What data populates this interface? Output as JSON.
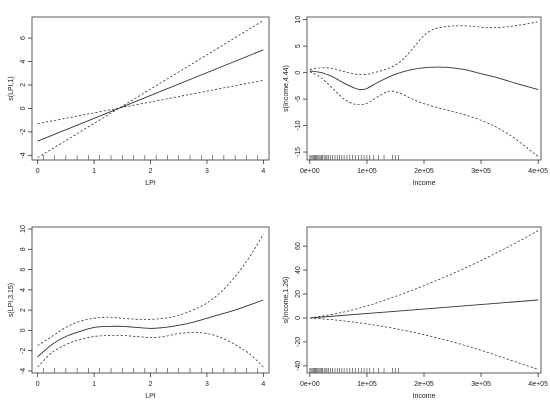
{
  "chart_data": [
    {
      "type": "line",
      "xlabel": "LPI",
      "ylabel": "s(LPI,1)",
      "xlim": [
        -0.1,
        4.1
      ],
      "ylim": [
        -4.4,
        7.8
      ],
      "x_ticks": [
        0,
        1,
        2,
        3,
        4
      ],
      "y_ticks": [
        -4,
        -2,
        0,
        2,
        4,
        6
      ],
      "rug": [
        0.1,
        0.3,
        0.5,
        0.7,
        0.9,
        1.1,
        1.3,
        1.5,
        1.7,
        1.9,
        2.1,
        2.3,
        2.5,
        2.7,
        2.9,
        3.1,
        3.3,
        3.5,
        3.7,
        3.9
      ],
      "series": [
        {
          "role": "fit",
          "style": "solid",
          "x": [
            0,
            4
          ],
          "y": [
            -2.8,
            5.0
          ]
        },
        {
          "role": "upper",
          "style": "dashed",
          "x": [
            0,
            4
          ],
          "y": [
            -1.3,
            2.4
          ]
        },
        {
          "role": "lower",
          "style": "dashed",
          "x": [
            0,
            4
          ],
          "y": [
            -4.2,
            7.5
          ]
        }
      ]
    },
    {
      "type": "line",
      "xlabel": "Income",
      "ylabel": "s(Income,4.44)",
      "xlim": [
        -5000,
        405000
      ],
      "ylim": [
        -16.5,
        10.5
      ],
      "x_ticks": [
        0,
        100000,
        200000,
        300000,
        400000
      ],
      "x_tick_labels": [
        "0e+00",
        "1e+05",
        "2e+05",
        "3e+05",
        "4e+05"
      ],
      "y_ticks": [
        -15,
        -10,
        -5,
        0,
        5,
        10
      ],
      "rug": [
        0,
        2000,
        4000,
        6000,
        8000,
        10000,
        12000,
        14000,
        16000,
        18000,
        20000,
        22000,
        25000,
        28000,
        30000,
        33000,
        36000,
        40000,
        44000,
        48000,
        52000,
        56000,
        60000,
        65000,
        70000,
        75000,
        80000,
        85000,
        90000,
        95000,
        100000,
        105000,
        112000,
        120000,
        130000,
        145000,
        150000,
        155000
      ],
      "series": [
        {
          "role": "fit",
          "style": "solid",
          "x": [
            0,
            20000,
            40000,
            60000,
            80000,
            90000,
            100000,
            120000,
            150000,
            180000,
            210000,
            240000,
            270000,
            300000,
            330000,
            360000,
            400000
          ],
          "y": [
            0.3,
            0.0,
            -0.8,
            -2.0,
            -3.0,
            -3.2,
            -3.0,
            -1.8,
            -0.3,
            0.6,
            1.0,
            1.0,
            0.6,
            -0.2,
            -1.0,
            -2.0,
            -3.2
          ]
        },
        {
          "role": "upper",
          "style": "dashed",
          "x": [
            0,
            20000,
            40000,
            60000,
            80000,
            100000,
            120000,
            140000,
            160000,
            180000,
            200000,
            220000,
            250000,
            280000,
            310000,
            340000,
            370000,
            400000
          ],
          "y": [
            0.6,
            0.9,
            0.8,
            0.2,
            -0.3,
            -0.3,
            0.2,
            0.9,
            2.2,
            4.5,
            7.0,
            8.3,
            8.8,
            8.8,
            8.5,
            8.6,
            9.0,
            9.6
          ]
        },
        {
          "role": "lower",
          "style": "dashed",
          "x": [
            0,
            20000,
            40000,
            60000,
            80000,
            100000,
            120000,
            140000,
            160000,
            190000,
            220000,
            260000,
            300000,
            330000,
            360000,
            390000,
            400000
          ],
          "y": [
            0.2,
            -1.0,
            -3.0,
            -5.0,
            -6.0,
            -5.8,
            -4.5,
            -3.5,
            -4.0,
            -5.5,
            -6.5,
            -7.6,
            -9.0,
            -10.5,
            -12.5,
            -15.0,
            -15.8
          ]
        }
      ]
    },
    {
      "type": "line",
      "xlabel": "LPI",
      "ylabel": "s(LPI,3.15)",
      "xlim": [
        -0.1,
        4.1
      ],
      "ylim": [
        -4.2,
        10.2
      ],
      "x_ticks": [
        0,
        1,
        2,
        3,
        4
      ],
      "y_ticks": [
        -4,
        -2,
        0,
        2,
        4,
        6,
        8,
        10
      ],
      "rug": [
        0.1,
        0.3,
        0.5,
        0.7,
        0.9,
        1.1,
        1.3,
        1.5,
        1.7,
        1.9,
        2.1,
        2.3,
        2.5,
        2.7,
        2.9,
        3.1,
        3.3,
        3.5,
        3.7,
        3.9
      ],
      "series": [
        {
          "role": "fit",
          "style": "solid",
          "x": [
            0,
            0.25,
            0.5,
            0.75,
            1.0,
            1.25,
            1.5,
            1.75,
            2.0,
            2.25,
            2.5,
            2.75,
            3.0,
            3.25,
            3.5,
            3.75,
            4.0
          ],
          "y": [
            -2.6,
            -1.4,
            -0.6,
            -0.1,
            0.3,
            0.4,
            0.4,
            0.3,
            0.2,
            0.3,
            0.5,
            0.8,
            1.2,
            1.6,
            2.0,
            2.5,
            3.0
          ]
        },
        {
          "role": "upper",
          "style": "dashed",
          "x": [
            0,
            0.25,
            0.5,
            0.75,
            1.0,
            1.25,
            1.5,
            1.75,
            2.0,
            2.25,
            2.5,
            2.75,
            3.0,
            3.25,
            3.5,
            3.75,
            4.0
          ],
          "y": [
            -1.5,
            -0.6,
            0.3,
            0.9,
            1.2,
            1.3,
            1.2,
            1.1,
            1.1,
            1.2,
            1.5,
            2.0,
            2.7,
            3.8,
            5.3,
            7.2,
            9.5
          ]
        },
        {
          "role": "lower",
          "style": "dashed",
          "x": [
            0,
            0.25,
            0.5,
            0.75,
            1.0,
            1.25,
            1.5,
            1.75,
            2.0,
            2.25,
            2.5,
            2.75,
            3.0,
            3.25,
            3.5,
            3.75,
            4.0
          ],
          "y": [
            -3.6,
            -2.2,
            -1.4,
            -0.9,
            -0.6,
            -0.5,
            -0.5,
            -0.6,
            -0.7,
            -0.6,
            -0.3,
            -0.2,
            -0.3,
            -0.7,
            -1.4,
            -2.3,
            -3.6
          ]
        }
      ]
    },
    {
      "type": "line",
      "xlabel": "Income",
      "ylabel": "s(Income,1.26)",
      "xlim": [
        -5000,
        405000
      ],
      "ylim": [
        -46,
        76
      ],
      "x_ticks": [
        0,
        100000,
        200000,
        300000,
        400000
      ],
      "x_tick_labels": [
        "0e+00",
        "1e+05",
        "2e+05",
        "3e+05",
        "4e+05"
      ],
      "y_ticks": [
        -40,
        -20,
        0,
        20,
        40,
        60
      ],
      "rug": [
        0,
        2000,
        4000,
        6000,
        8000,
        10000,
        12000,
        14000,
        16000,
        18000,
        20000,
        22000,
        25000,
        28000,
        30000,
        33000,
        36000,
        40000,
        44000,
        48000,
        52000,
        56000,
        60000,
        65000,
        70000,
        75000,
        80000,
        85000,
        90000,
        95000,
        100000,
        105000,
        112000,
        120000,
        130000,
        145000,
        150000,
        155000
      ],
      "series": [
        {
          "role": "fit",
          "style": "solid",
          "x": [
            0,
            400000
          ],
          "y": [
            0,
            15
          ]
        },
        {
          "role": "upper",
          "style": "dashed",
          "x": [
            0,
            50000,
            100000,
            150000,
            200000,
            250000,
            300000,
            350000,
            400000
          ],
          "y": [
            0,
            4,
            10,
            18,
            27,
            37,
            48,
            60,
            73
          ]
        },
        {
          "role": "lower",
          "style": "dashed",
          "x": [
            0,
            50000,
            100000,
            150000,
            200000,
            250000,
            300000,
            350000,
            400000
          ],
          "y": [
            0,
            -2,
            -5,
            -9,
            -14,
            -20,
            -27,
            -35,
            -43
          ]
        }
      ]
    }
  ]
}
